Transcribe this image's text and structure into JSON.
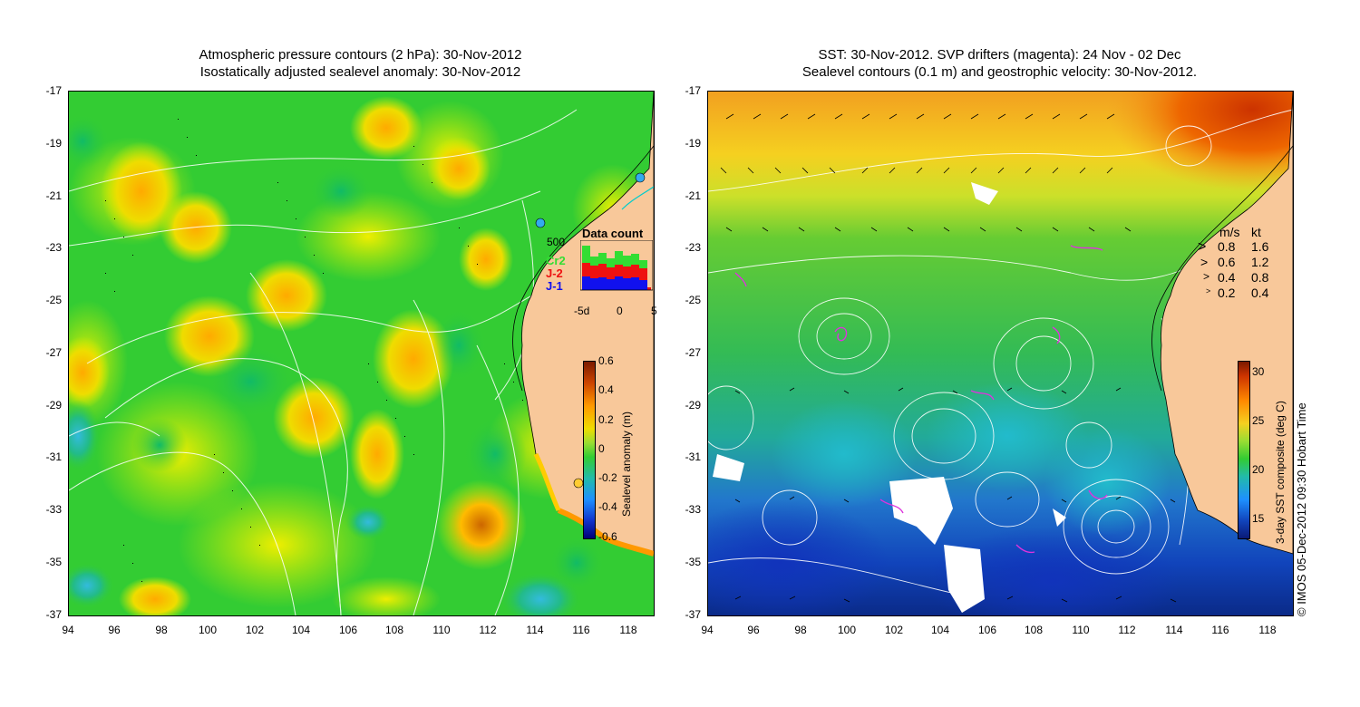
{
  "left_map": {
    "title_line1": "Atmospheric pressure contours (2 hPa): 30-Nov-2012",
    "title_line2": "Isostatically adjusted sealevel anomaly: 30-Nov-2012",
    "colorbar": {
      "label": "Sealevel anomaly (m)",
      "ticks": [
        "0.6",
        "0.4",
        "0.2",
        "0",
        "-0.2",
        "-0.4",
        "-0.6"
      ],
      "range": [
        -0.6,
        0.6
      ]
    },
    "data_count_inset": {
      "title": "Data count",
      "y_tick": "500",
      "legend": [
        {
          "name": "Cr2",
          "color": "#33dd33"
        },
        {
          "name": "J-2",
          "color": "#ee1111"
        },
        {
          "name": "J-1",
          "color": "#1111ee"
        }
      ],
      "x_ticks": [
        "-5d",
        "0",
        "5"
      ]
    }
  },
  "right_map": {
    "title_line1": "SST: 30-Nov-2012. SVP drifters (magenta): 24 Nov - 02 Dec",
    "title_line2": "Sealevel contours (0.1 m) and geostrophic velocity: 30-Nov-2012.",
    "velocity_legend": {
      "header_ms": "m/s",
      "header_kt": "kt",
      "rows": [
        {
          "ms": "0.8",
          "kt": "1.6"
        },
        {
          "ms": "0.6",
          "kt": "1.2"
        },
        {
          "ms": "0.4",
          "kt": "0.8"
        },
        {
          "ms": "0.2",
          "kt": "0.4"
        }
      ]
    },
    "colorbar": {
      "label": "3-day SST composite (deg C)",
      "ticks": [
        "30",
        "25",
        "20",
        "15"
      ],
      "range": [
        13,
        31
      ]
    }
  },
  "axes": {
    "lat_ticks": [
      "-17",
      "-19",
      "-21",
      "-23",
      "-25",
      "-27",
      "-29",
      "-31",
      "-33",
      "-35",
      "-37"
    ],
    "lon_ticks": [
      "94",
      "96",
      "98",
      "100",
      "102",
      "104",
      "106",
      "108",
      "110",
      "112",
      "114",
      "116",
      "118"
    ]
  },
  "credit": "© IMOS 05-Dec-2012 09:30 Hobart Time",
  "colors": {
    "land": "#f8c89a",
    "ocean_green": "#33cc33",
    "anomaly_high": "#cc6600",
    "anomaly_low": "#1e90ff"
  }
}
